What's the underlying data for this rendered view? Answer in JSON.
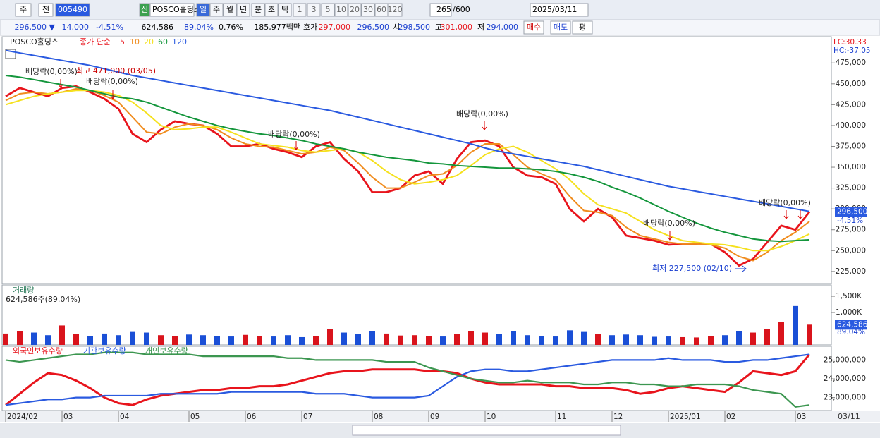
{
  "toolbar": {
    "row1": [
      "주",
      "전",
      "005490",
      "신",
      "POSCO홀딩스",
      "일",
      "주",
      "월",
      "년",
      "분",
      "초",
      "틱",
      "1",
      "3",
      "5",
      "10",
      "20",
      "30",
      "60",
      "120",
      "265",
      "/600",
      "2025/03/11"
    ],
    "row2": [
      "296,500 ▼",
      "14,000",
      "-4.51%",
      "624,586",
      "89.04%",
      "0.76%",
      "185,977백만",
      "호가",
      "297,000",
      "296,500",
      "시",
      "298,500",
      "고",
      "301,000",
      "저",
      "294,000",
      "매수",
      "매도",
      "평"
    ]
  },
  "chart_data": [
    {
      "type": "line",
      "title": "POSCO홀딩스",
      "subtitle": "종가 단순",
      "categories": [
        "2024/02",
        null,
        null,
        null,
        "03",
        null,
        null,
        null,
        "04",
        null,
        null,
        null,
        null,
        "05",
        null,
        null,
        null,
        "06",
        null,
        null,
        null,
        "07",
        null,
        null,
        null,
        null,
        "08",
        null,
        null,
        null,
        "09",
        null,
        null,
        null,
        "10",
        null,
        null,
        null,
        null,
        "11",
        null,
        null,
        null,
        "12",
        null,
        null,
        null,
        "2025/01",
        null,
        null,
        null,
        "02",
        null,
        null,
        null,
        null,
        "03",
        null
      ],
      "series": [
        {
          "name": "5",
          "color": "#e8141c",
          "values": [
            435000,
            445000,
            440000,
            435000,
            445000,
            447000,
            440000,
            432000,
            420000,
            390000,
            380000,
            395000,
            405000,
            402000,
            400000,
            390000,
            375000,
            375000,
            378000,
            372000,
            368000,
            362000,
            375000,
            380000,
            360000,
            345000,
            320000,
            320000,
            325000,
            340000,
            345000,
            330000,
            360000,
            380000,
            382000,
            375000,
            350000,
            340000,
            338000,
            330000,
            300000,
            285000,
            300000,
            290000,
            268000,
            265000,
            262000,
            257000,
            258000,
            258000,
            258000,
            248000,
            232000,
            240000,
            260000,
            280000,
            275000,
            296500
          ]
        },
        {
          "name": "10",
          "color": "#f08c1e",
          "values": [
            430000,
            438000,
            440000,
            438000,
            440000,
            444000,
            442000,
            436000,
            428000,
            410000,
            392000,
            390000,
            398000,
            402000,
            400000,
            395000,
            385000,
            378000,
            375000,
            374000,
            370000,
            366000,
            368000,
            374000,
            370000,
            355000,
            338000,
            325000,
            325000,
            332000,
            340000,
            342000,
            352000,
            368000,
            378000,
            378000,
            365000,
            350000,
            342000,
            335000,
            315000,
            298000,
            296000,
            292000,
            278000,
            268000,
            264000,
            260000,
            258000,
            258000,
            257000,
            253000,
            243000,
            238000,
            248000,
            262000,
            272000,
            285000
          ]
        },
        {
          "name": "20",
          "color": "#f5e11e",
          "values": [
            425000,
            430000,
            435000,
            438000,
            440000,
            442000,
            442000,
            440000,
            436000,
            428000,
            415000,
            400000,
            395000,
            396000,
            398000,
            398000,
            392000,
            385000,
            378000,
            376000,
            374000,
            370000,
            368000,
            370000,
            372000,
            368000,
            358000,
            345000,
            335000,
            330000,
            332000,
            335000,
            340000,
            352000,
            365000,
            372000,
            375000,
            368000,
            358000,
            348000,
            335000,
            318000,
            305000,
            300000,
            295000,
            285000,
            275000,
            268000,
            262000,
            260000,
            258000,
            257000,
            254000,
            250000,
            250000,
            255000,
            262000,
            270000
          ]
        },
        {
          "name": "60",
          "color": "#14963c",
          "values": [
            460000,
            458000,
            455000,
            452000,
            449000,
            446000,
            442000,
            438000,
            434000,
            432000,
            428000,
            422000,
            416000,
            410000,
            405000,
            400000,
            396000,
            393000,
            390000,
            388000,
            385000,
            382000,
            378000,
            375000,
            372000,
            368000,
            365000,
            362000,
            360000,
            358000,
            355000,
            354000,
            352000,
            351000,
            350000,
            349000,
            349000,
            348000,
            347000,
            345000,
            342000,
            338000,
            333000,
            326000,
            320000,
            313000,
            305000,
            297000,
            290000,
            283000,
            277000,
            272000,
            268000,
            264000,
            262000,
            261000,
            262000,
            263000
          ]
        },
        {
          "name": "120",
          "color": "#2a5ae0",
          "values": [
            490000,
            487000,
            484000,
            481000,
            478000,
            475000,
            472000,
            468000,
            464000,
            460000,
            457000,
            454000,
            451000,
            448000,
            445000,
            442000,
            439000,
            436000,
            433000,
            430000,
            427000,
            424000,
            421000,
            418000,
            414000,
            410000,
            406000,
            402000,
            398000,
            394000,
            390000,
            386000,
            382000,
            378000,
            373000,
            369000,
            366000,
            363000,
            360000,
            357000,
            354000,
            351000,
            347000,
            343000,
            339000,
            335000,
            331000,
            327000,
            324000,
            321000,
            318000,
            315000,
            312000,
            309000,
            306000,
            303000,
            300000,
            297000
          ]
        }
      ],
      "ylim": [
        210500,
        506500
      ],
      "yticks": [
        {
          "value": 225000,
          "label": "225,000"
        },
        {
          "value": 250000,
          "label": "250,000"
        },
        {
          "value": 275000,
          "label": "275,000"
        },
        {
          "value": 300000,
          "label": "300,000"
        },
        {
          "value": 325000,
          "label": "325,000"
        },
        {
          "value": 350000,
          "label": "350,000"
        },
        {
          "value": 375000,
          "label": "375,000"
        },
        {
          "value": 400000,
          "label": "400,000"
        },
        {
          "value": 425000,
          "label": "425,000"
        },
        {
          "value": 450000,
          "label": "450,000"
        },
        {
          "value": 475000,
          "label": "475,000"
        }
      ],
      "annotations": [
        "배당락(0,00%)",
        "최고 471,000 (03/05)",
        "배당락(0,00%)",
        "배당락(0,00%)",
        "배당락(0,00%)",
        "배당락(0,00%)",
        "최저 227,500 (02/10)",
        "배당락(0,00%)"
      ],
      "scale_labels": [
        "LC:30.33",
        "HC:-37.05"
      ],
      "last_price": {
        "value": 296500,
        "label": "296,500"
      },
      "change": "-4.51%"
    },
    {
      "type": "bar",
      "title": "거래량",
      "subtitle": "624,586주(89.04%)",
      "values": [
        350000,
        420000,
        380000,
        300000,
        600000,
        330000,
        280000,
        350000,
        300000,
        400000,
        380000,
        300000,
        280000,
        320000,
        300000,
        270000,
        260000,
        310000,
        280000,
        260000,
        300000,
        240000,
        280000,
        500000,
        380000,
        330000,
        420000,
        350000,
        290000,
        300000,
        280000,
        260000,
        340000,
        420000,
        380000,
        340000,
        420000,
        300000,
        280000,
        260000,
        450000,
        400000,
        330000,
        300000,
        320000,
        300000,
        250000,
        260000,
        240000,
        230000,
        270000,
        300000,
        420000,
        380000,
        500000,
        700000,
        1200000,
        624586
      ],
      "colors": {
        "up": "#d9141c",
        "down": "#1a4fd6"
      },
      "ylim": [
        0,
        1850000
      ],
      "yticks": [
        {
          "value": 1000000,
          "label": "1,000K"
        },
        {
          "value": 1500000,
          "label": "1,500K"
        }
      ],
      "last": {
        "value": 624586,
        "label": "624,586"
      },
      "ratio": "89.04%"
    },
    {
      "type": "line",
      "series": [
        {
          "name": "외국인보유수량",
          "color": "#e8141c",
          "values": [
            22600000,
            23200000,
            23800000,
            24300000,
            24200000,
            23900000,
            23500000,
            23000000,
            22700000,
            22600000,
            22900000,
            23100000,
            23200000,
            23300000,
            23400000,
            23400000,
            23500000,
            23500000,
            23600000,
            23600000,
            23700000,
            23900000,
            24100000,
            24300000,
            24400000,
            24400000,
            24500000,
            24500000,
            24500000,
            24500000,
            24400000,
            24400000,
            24300000,
            24000000,
            23800000,
            23700000,
            23700000,
            23700000,
            23700000,
            23600000,
            23600000,
            23500000,
            23500000,
            23500000,
            23400000,
            23200000,
            23300000,
            23500000,
            23600000,
            23500000,
            23400000,
            23300000,
            23800000,
            24400000,
            24300000,
            24200000,
            24400000,
            25300000
          ]
        },
        {
          "name": "기관보유수량",
          "color": "#2a5ae0",
          "values": [
            22600000,
            22700000,
            22800000,
            22900000,
            22900000,
            23000000,
            23000000,
            23100000,
            23100000,
            23100000,
            23100000,
            23200000,
            23200000,
            23200000,
            23200000,
            23200000,
            23300000,
            23300000,
            23300000,
            23300000,
            23300000,
            23300000,
            23200000,
            23200000,
            23200000,
            23100000,
            23000000,
            23000000,
            23000000,
            23000000,
            23100000,
            23600000,
            24100000,
            24400000,
            24500000,
            24500000,
            24400000,
            24400000,
            24500000,
            24600000,
            24700000,
            24800000,
            24900000,
            25000000,
            25000000,
            25000000,
            25000000,
            25100000,
            25000000,
            25000000,
            25000000,
            24900000,
            24900000,
            25000000,
            25000000,
            25100000,
            25200000,
            25300000
          ]
        },
        {
          "name": "개인보유수량",
          "color": "#3c9650",
          "values": [
            25000000,
            24900000,
            25000000,
            25100000,
            25200000,
            25300000,
            25300000,
            25400000,
            25400000,
            25400000,
            25300000,
            25300000,
            25300000,
            25300000,
            25200000,
            25200000,
            25200000,
            25200000,
            25200000,
            25200000,
            25100000,
            25100000,
            25000000,
            25000000,
            25000000,
            25000000,
            25000000,
            24900000,
            24900000,
            24900000,
            24600000,
            24400000,
            24200000,
            24000000,
            23900000,
            23800000,
            23800000,
            23900000,
            23800000,
            23800000,
            23800000,
            23700000,
            23700000,
            23800000,
            23800000,
            23700000,
            23700000,
            23600000,
            23600000,
            23700000,
            23700000,
            23700000,
            23600000,
            23400000,
            23300000,
            23200000,
            22500000,
            22600000
          ]
        }
      ],
      "ylim": [
        22270000,
        25730000
      ],
      "yticks": [
        {
          "value": 23000000,
          "label": "23,000,000"
        },
        {
          "value": 24000000,
          "label": "24,000,000"
        },
        {
          "value": 25000000,
          "label": "25,000,000"
        }
      ]
    }
  ],
  "footer_date": "03/11"
}
